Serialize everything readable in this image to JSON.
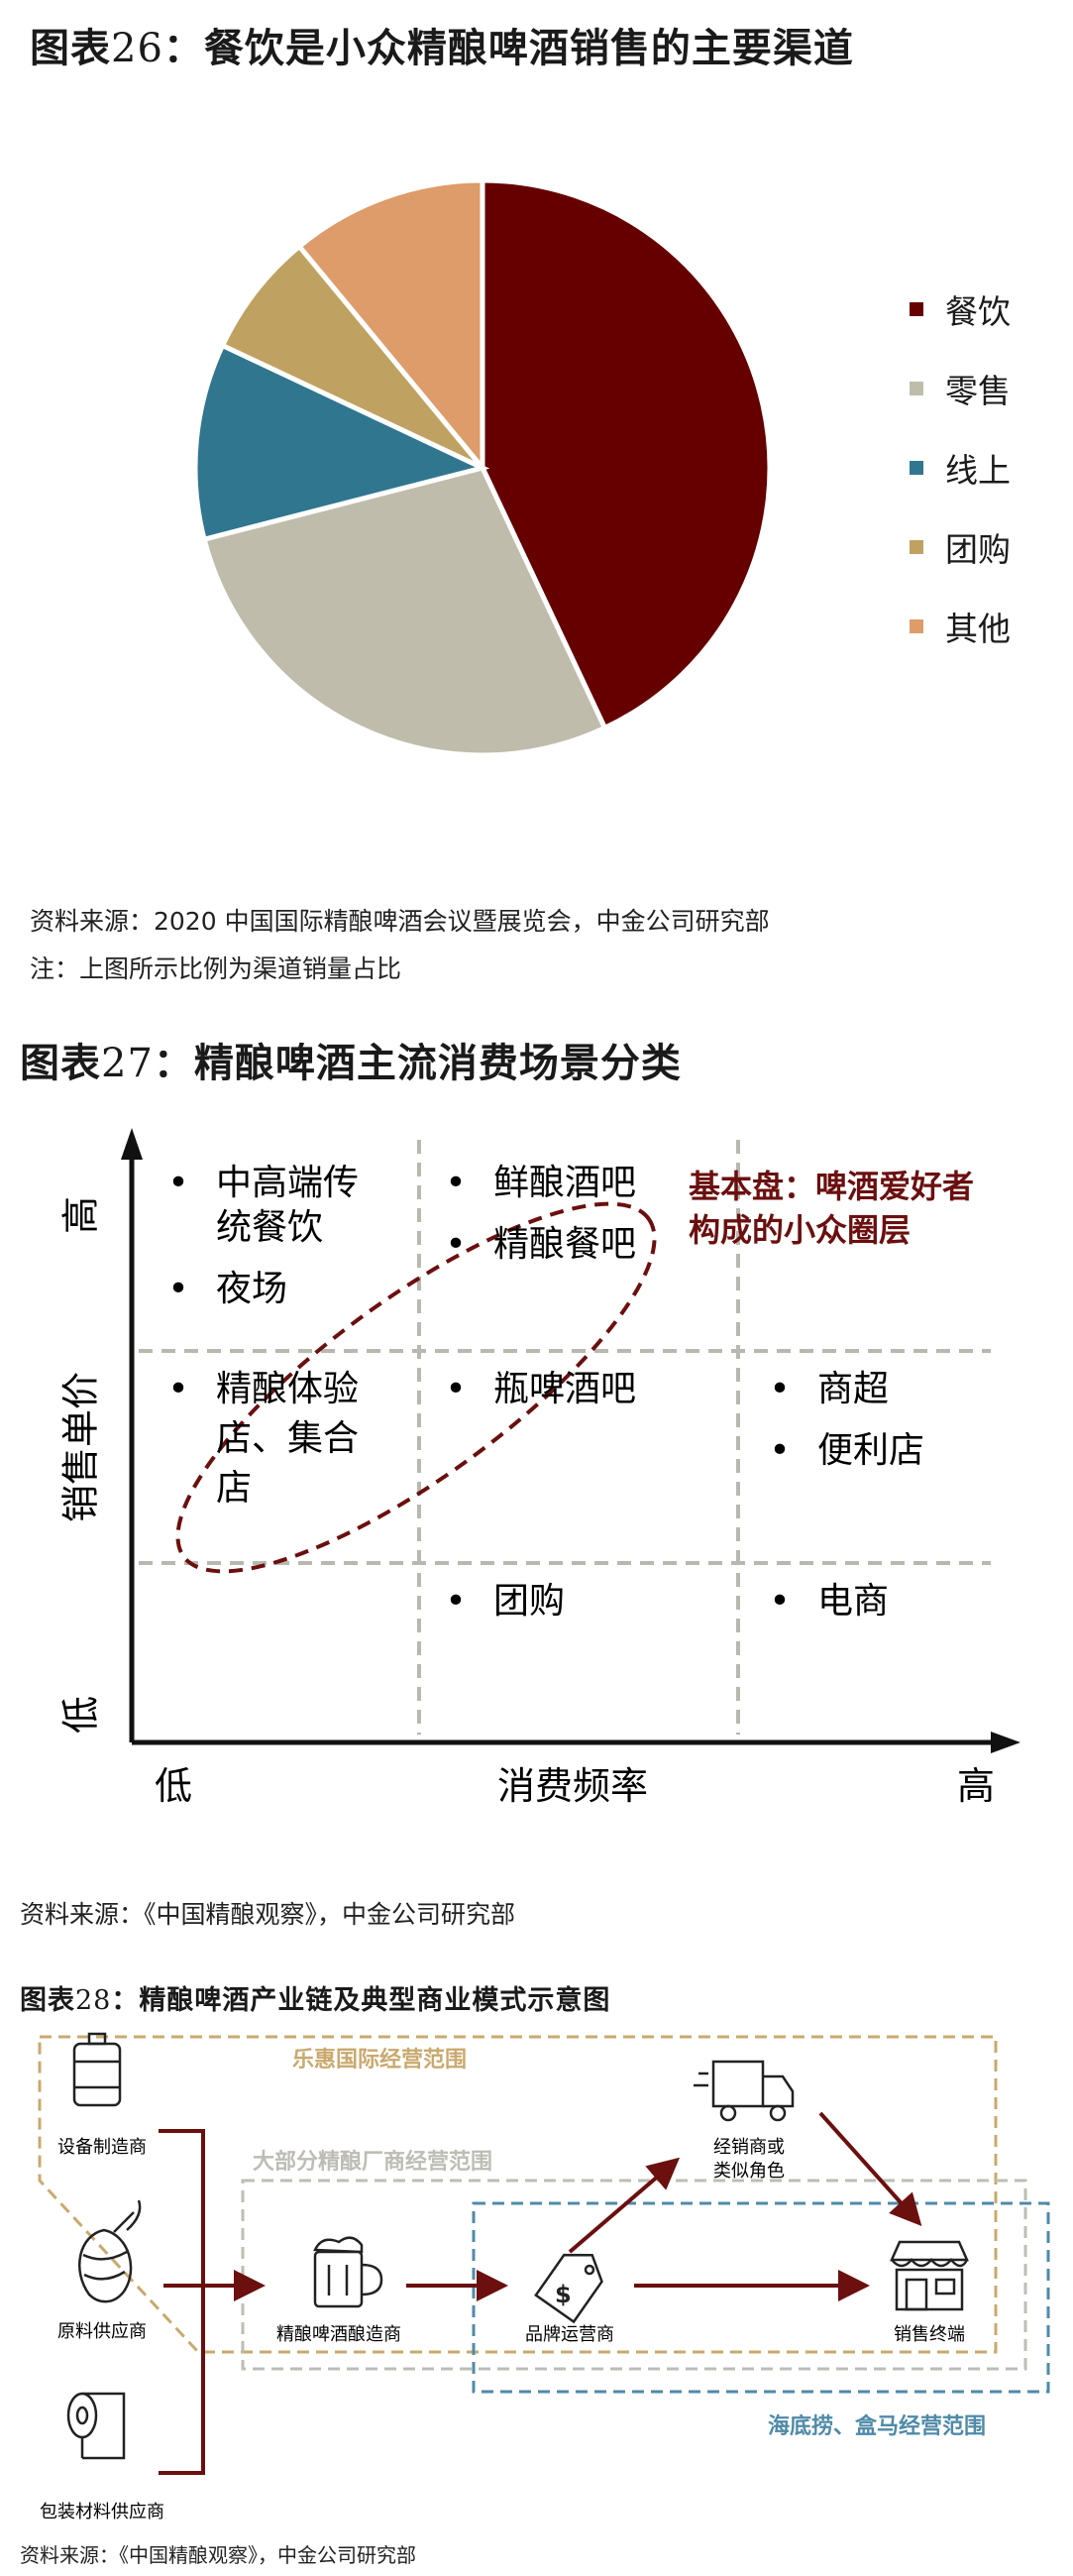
{
  "fig26": {
    "title_prefix": "图表",
    "title_num": "26",
    "title_main": "：餐饮是小众精酿啤酒销售的主要渠道",
    "source": "资料来源：2020 中国国际精酿啤酒会议暨展览会，中金公司研究部",
    "note": "注：上图所示比例为渠道销量占比"
  },
  "chart_data": {
    "type": "pie",
    "title": "",
    "categories": [
      "餐饮",
      "零售",
      "线上",
      "团购",
      "其他"
    ],
    "values": [
      43,
      28,
      11,
      7,
      11
    ],
    "colors": [
      "#660000",
      "#BFBCAB",
      "#31768F",
      "#BFA262",
      "#DD9C6A"
    ],
    "legend_position": "right"
  },
  "fig27": {
    "title_prefix": "图表",
    "title_num": "27",
    "title_main": "：精酿啤酒主流消费场景分类",
    "y_axis_label": "销售单价",
    "y_high": "高",
    "y_low": "低",
    "x_axis_label": "消费频率",
    "x_low": "低",
    "x_high": "高",
    "cells": {
      "top_left": [
        "中高端传统餐饮",
        "夜场"
      ],
      "top_mid": [
        "鲜酿酒吧",
        "精酿餐吧"
      ],
      "mid_left": [
        "精酿体验店、集合店"
      ],
      "mid_mid": [
        "瓶啤酒吧"
      ],
      "mid_right": [
        "商超",
        "便利店"
      ],
      "bot_mid": [
        "团购"
      ],
      "bot_right": [
        "电商"
      ]
    },
    "callout": [
      "基本盘：啤酒爱好者",
      "构成的小众圈层"
    ],
    "source": "资料来源：《中国精酿观察》，中金公司研究部"
  },
  "fig28": {
    "title_prefix": "图表",
    "title_num": "28",
    "title_main": "：精酿啤酒产业链及典型商业模式示意图",
    "region_gold": "乐惠国际经营范围",
    "region_grey": "大部分精酿厂商经营范围",
    "region_blue": "海底捞、盒马经营范围",
    "nodes": {
      "equipment": "设备制造商",
      "raw": "原料供应商",
      "packaging": "包装材料供应商",
      "brewer": "精酿啤酒酿造商",
      "brand": "品牌运营商",
      "distributor": [
        "经销商或",
        "类似角色"
      ],
      "terminal": "销售终端"
    },
    "source": "资料来源：《中国精酿观察》，中金公司研究部"
  }
}
